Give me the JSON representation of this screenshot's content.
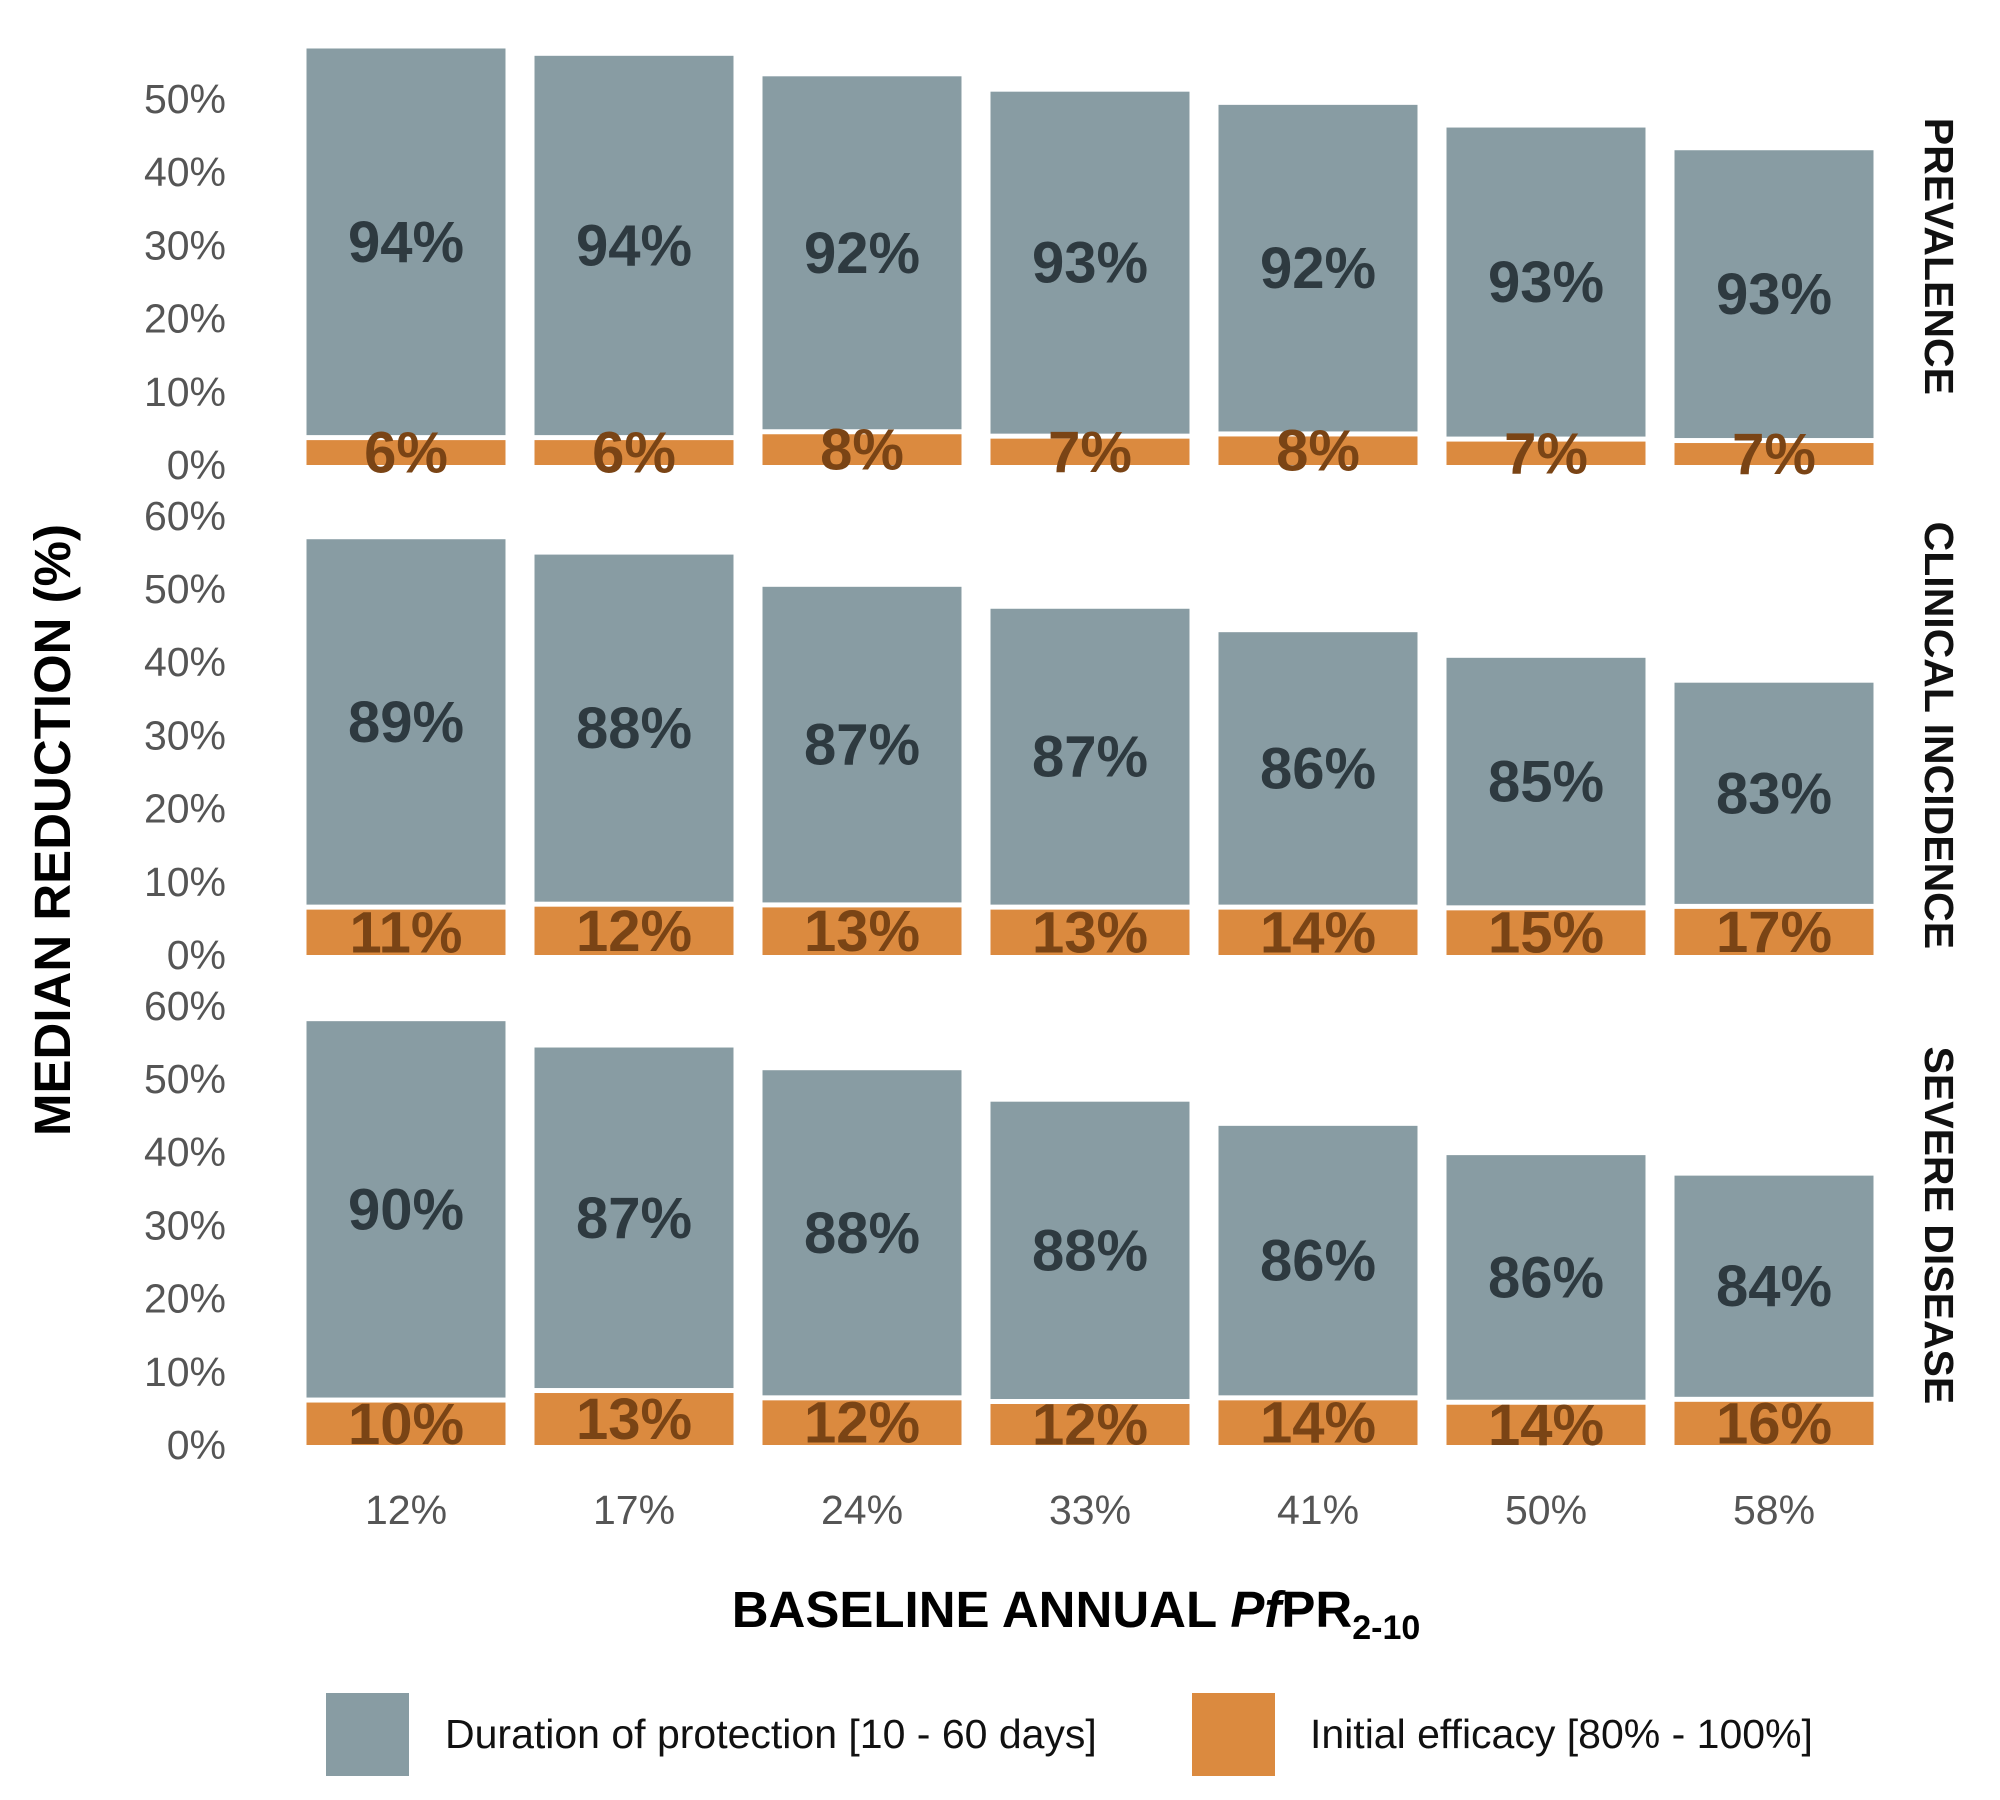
{
  "chart_data": {
    "type": "bar",
    "stacked": true,
    "x_categories": [
      "12%",
      "17%",
      "24%",
      "33%",
      "41%",
      "50%",
      "58%"
    ],
    "ylabel": "MEDIAN REDUCTION (%)",
    "xlabel": {
      "main": "BASELINE ANNUAL ",
      "italic": "Pf",
      "rest": "PR",
      "subscript": "2-10"
    },
    "legend": {
      "position": "bottom",
      "items": [
        {
          "key": "duration",
          "label": "Duration of protection [10 - 60 days]",
          "color": "#889ca3"
        },
        {
          "key": "efficacy",
          "label": "Initial efficacy [80% - 100%]",
          "color": "#db8a3f"
        }
      ]
    },
    "label_colors": {
      "duration": "#2e3a40",
      "efficacy": "#7a4415"
    },
    "panels": [
      {
        "name": "PREVALENCE",
        "ylim": [
          0,
          57
        ],
        "yticks": [
          0,
          10,
          20,
          30,
          40,
          50
        ],
        "ytick_labels": [
          "0%",
          "10%",
          "20%",
          "30%",
          "40%",
          "50%"
        ],
        "total": [
          56.9,
          55.9,
          53.1,
          51.0,
          49.2,
          46.1,
          43.0
        ],
        "series": [
          {
            "key": "efficacy",
            "values": [
              3.4,
              3.4,
              4.2,
              3.6,
              3.9,
              3.2,
              3.0
            ],
            "labels": [
              "6%",
              "6%",
              "8%",
              "7%",
              "8%",
              "7%",
              "7%"
            ]
          },
          {
            "key": "duration",
            "values": [
              53.5,
              52.5,
              48.9,
              47.4,
              45.3,
              42.9,
              40.0
            ],
            "labels": [
              "94%",
              "94%",
              "92%",
              "93%",
              "92%",
              "93%",
              "93%"
            ]
          }
        ]
      },
      {
        "name": "CLINICAL INCIDENCE",
        "ylim": [
          0,
          60
        ],
        "yticks": [
          0,
          10,
          20,
          30,
          40,
          50,
          60
        ],
        "ytick_labels": [
          "0%",
          "10%",
          "20%",
          "30%",
          "40%",
          "50%",
          "60%"
        ],
        "total": [
          56.8,
          54.7,
          50.3,
          47.3,
          44.1,
          40.6,
          37.2
        ],
        "series": [
          {
            "key": "efficacy",
            "values": [
              6.2,
              6.6,
              6.5,
              6.2,
              6.2,
              6.1,
              6.3
            ],
            "labels": [
              "11%",
              "12%",
              "13%",
              "13%",
              "14%",
              "15%",
              "17%"
            ]
          },
          {
            "key": "duration",
            "values": [
              50.6,
              48.1,
              43.8,
              41.1,
              37.9,
              34.5,
              30.9
            ],
            "labels": [
              "89%",
              "88%",
              "87%",
              "87%",
              "86%",
              "85%",
              "83%"
            ]
          }
        ]
      },
      {
        "name": "SEVERE DISEASE",
        "ylim": [
          0,
          60
        ],
        "yticks": [
          0,
          10,
          20,
          30,
          40,
          50,
          60
        ],
        "ytick_labels": [
          "0%",
          "10%",
          "20%",
          "30%",
          "40%",
          "50%",
          "60%"
        ],
        "total": [
          57.9,
          54.3,
          51.2,
          46.9,
          43.6,
          39.6,
          36.8
        ],
        "series": [
          {
            "key": "efficacy",
            "values": [
              5.8,
              7.1,
              6.1,
              5.6,
              6.1,
              5.5,
              5.9
            ],
            "labels": [
              "10%",
              "13%",
              "12%",
              "12%",
              "14%",
              "14%",
              "16%"
            ]
          },
          {
            "key": "duration",
            "values": [
              52.1,
              47.2,
              45.1,
              41.3,
              37.5,
              34.1,
              30.9
            ],
            "labels": [
              "90%",
              "87%",
              "88%",
              "88%",
              "86%",
              "86%",
              "84%"
            ]
          }
        ]
      }
    ]
  }
}
